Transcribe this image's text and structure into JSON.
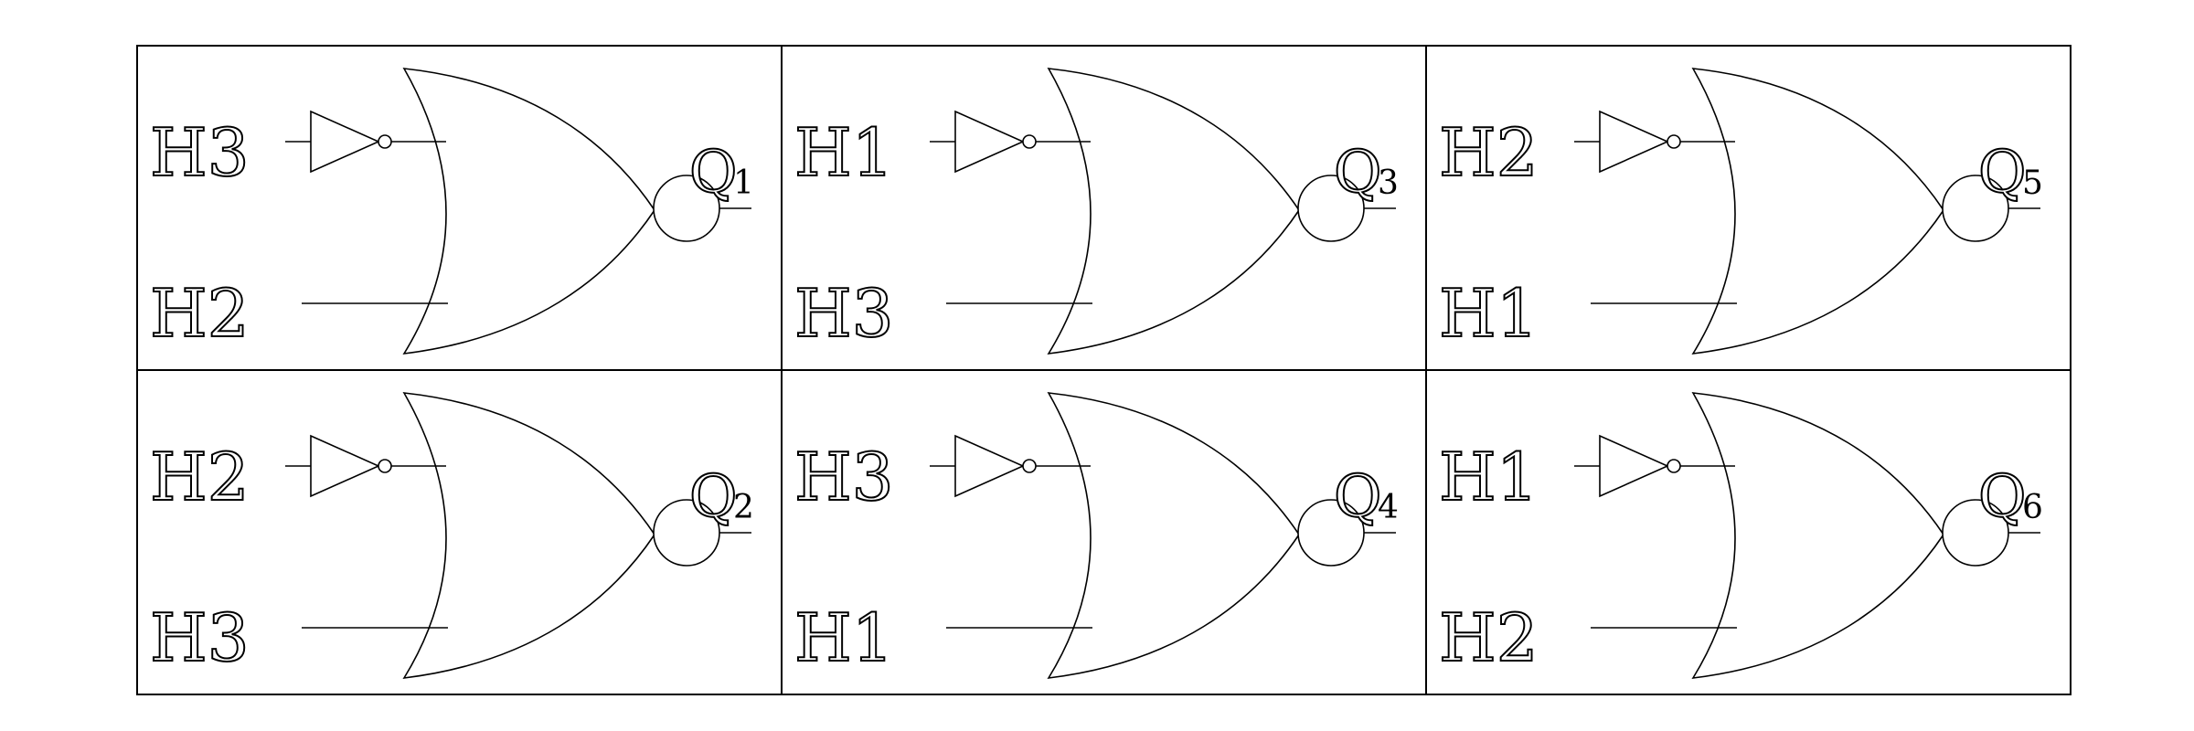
{
  "cells": [
    {
      "id": "cell-1",
      "inputs": [
        "H3",
        "H2"
      ],
      "output_letter": "Q",
      "output_index": "1"
    },
    {
      "id": "cell-2",
      "inputs": [
        "H2",
        "H3"
      ],
      "output_letter": "Q",
      "output_index": "2"
    },
    {
      "id": "cell-3",
      "inputs": [
        "H1",
        "H3"
      ],
      "output_letter": "Q",
      "output_index": "3"
    },
    {
      "id": "cell-4",
      "inputs": [
        "H3",
        "H1"
      ],
      "output_letter": "Q",
      "output_index": "4"
    },
    {
      "id": "cell-5",
      "inputs": [
        "H2",
        "H1"
      ],
      "output_letter": "Q",
      "output_index": "5"
    },
    {
      "id": "cell-6",
      "inputs": [
        "H1",
        "H2"
      ],
      "output_letter": "Q",
      "output_index": "6"
    }
  ],
  "colors": {
    "stroke": "#000000",
    "background": "#ffffff"
  }
}
